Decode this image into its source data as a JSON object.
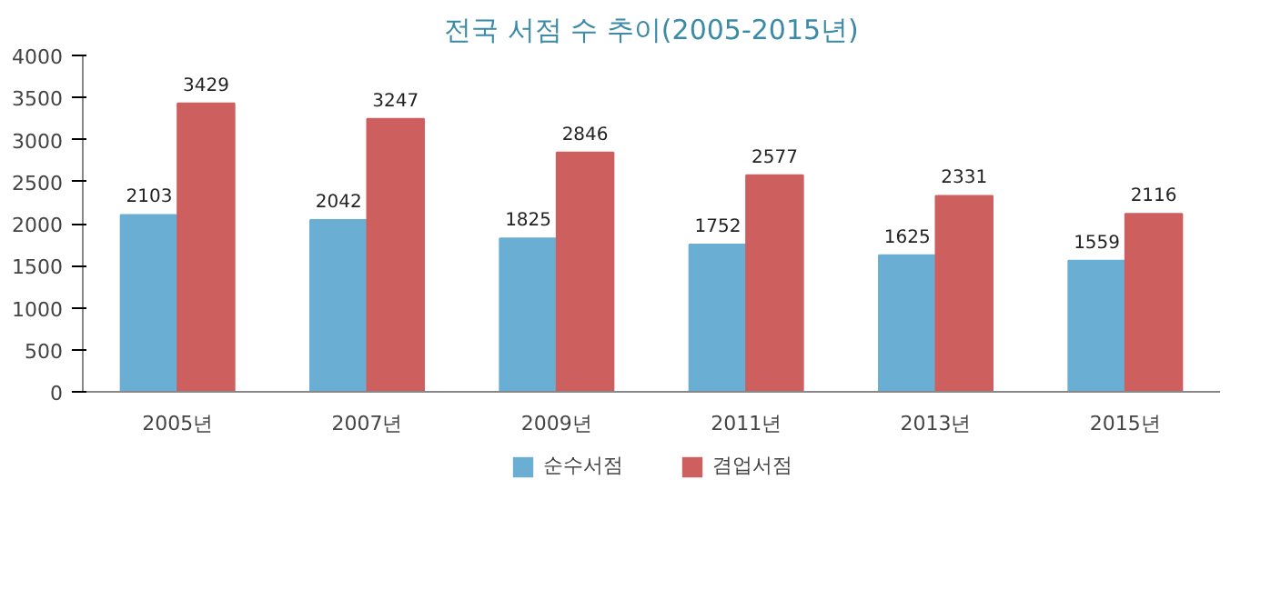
{
  "chart_data": {
    "type": "bar",
    "title": "전국 서점 수 추이(2005-2015년)",
    "categories": [
      "2005년",
      "2007년",
      "2009년",
      "2011년",
      "2013년",
      "2015년"
    ],
    "series": [
      {
        "name": "순수서점",
        "color": "#6aafd3",
        "values": [
          2103,
          2042,
          1825,
          1752,
          1625,
          1559
        ]
      },
      {
        "name": "겸업서점",
        "color": "#cd5f5f",
        "values": [
          3429,
          3247,
          2846,
          2577,
          2331,
          2116
        ]
      }
    ],
    "ylim": [
      0,
      4000
    ],
    "yticks": [
      0,
      500,
      1000,
      1500,
      2000,
      2500,
      3000,
      3500,
      4000
    ],
    "grid": false,
    "legend": "bottom",
    "data_labels": true
  }
}
